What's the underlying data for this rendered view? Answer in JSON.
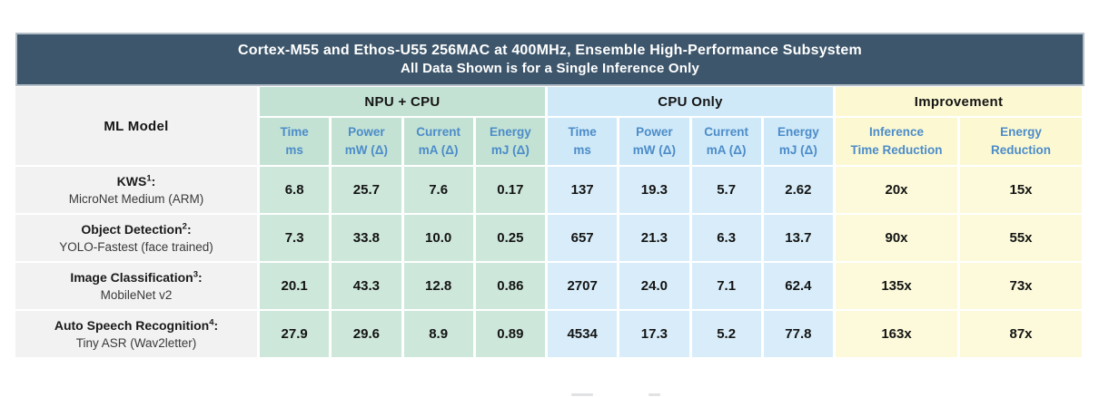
{
  "chart_data": {
    "type": "table",
    "title": "Cortex-M55 and Ethos-U55 256MAC at 400MHz, Ensemble High-Performance Subsystem",
    "subtitle": "All Data Shown is for a Single Inference Only",
    "column_groups": [
      "NPU + CPU",
      "CPU Only",
      "Improvement"
    ],
    "columns": [
      "ML Model",
      "NPU+CPU Time ms",
      "NPU+CPU Power mW (Δ)",
      "NPU+CPU Current mA (Δ)",
      "NPU+CPU Energy mJ (Δ)",
      "CPU Only Time ms",
      "CPU Only Power mW (Δ)",
      "CPU Only Current mA (Δ)",
      "CPU Only Energy mJ (Δ)",
      "Inference Time Reduction",
      "Energy Reduction"
    ],
    "rows": [
      [
        "KWS¹: MicroNet Medium (ARM)",
        6.8,
        25.7,
        7.6,
        0.17,
        137,
        19.3,
        5.7,
        2.62,
        "20x",
        "15x"
      ],
      [
        "Object Detection²: YOLO-Fastest (face trained)",
        7.3,
        33.8,
        10.0,
        0.25,
        657,
        21.3,
        6.3,
        13.7,
        "90x",
        "55x"
      ],
      [
        "Image Classification³: MobileNet v2",
        20.1,
        43.3,
        12.8,
        0.86,
        2707,
        24.0,
        7.1,
        62.4,
        "135x",
        "73x"
      ],
      [
        "Auto Speech Recognition⁴: Tiny ASR (Wav2letter)",
        27.9,
        29.6,
        8.9,
        0.89,
        4534,
        17.3,
        5.2,
        77.8,
        "163x",
        "87x"
      ]
    ]
  },
  "ui": {
    "title": {
      "line1": "Cortex-M55 and Ethos-U55 256MAC at 400MHz, Ensemble High-Performance Subsystem",
      "line2": "All Data Shown is for a Single Inference Only"
    },
    "model_header": "ML Model",
    "groups": [
      {
        "label": "NPU + CPU"
      },
      {
        "label": "CPU Only"
      },
      {
        "label": "Improvement"
      }
    ],
    "sub": {
      "npu": [
        {
          "top": "Time",
          "bottom": "ms"
        },
        {
          "top": "Power",
          "bottom": "mW (Δ)"
        },
        {
          "top": "Current",
          "bottom": "mA (Δ)"
        },
        {
          "top": "Energy",
          "bottom": "mJ (Δ)"
        }
      ],
      "cpu": [
        {
          "top": "Time",
          "bottom": "ms"
        },
        {
          "top": "Power",
          "bottom": "mW (Δ)"
        },
        {
          "top": "Current",
          "bottom": "mA (Δ)"
        },
        {
          "top": "Energy",
          "bottom": "mJ (Δ)"
        }
      ],
      "imp": [
        {
          "top": "Inference",
          "bottom": "Time Reduction"
        },
        {
          "top": "Energy",
          "bottom": "Reduction"
        }
      ]
    },
    "rows": [
      {
        "model": {
          "name": "KWS",
          "sup": "1",
          "colon": ":",
          "detail": "MicroNet Medium (ARM)"
        },
        "npu": [
          "6.8",
          "25.7",
          "7.6",
          "0.17"
        ],
        "cpu": [
          "137",
          "19.3",
          "5.7",
          "2.62"
        ],
        "imp": [
          "20x",
          "15x"
        ]
      },
      {
        "model": {
          "name": "Object Detection",
          "sup": "2",
          "colon": ":",
          "detail": "YOLO-Fastest (face trained)"
        },
        "npu": [
          "7.3",
          "33.8",
          "10.0",
          "0.25"
        ],
        "cpu": [
          "657",
          "21.3",
          "6.3",
          "13.7"
        ],
        "imp": [
          "90x",
          "55x"
        ]
      },
      {
        "model": {
          "name": "Image Classification",
          "sup": "3",
          "colon": ":",
          "detail": "MobileNet v2"
        },
        "npu": [
          "20.1",
          "43.3",
          "12.8",
          "0.86"
        ],
        "cpu": [
          "2707",
          "24.0",
          "7.1",
          "62.4"
        ],
        "imp": [
          "135x",
          "73x"
        ]
      },
      {
        "model": {
          "name": "Auto Speech Recognition",
          "sup": "4",
          "colon": ":",
          "detail": "Tiny ASR (Wav2letter)"
        },
        "npu": [
          "27.9",
          "29.6",
          "8.9",
          "0.89"
        ],
        "cpu": [
          "4534",
          "17.3",
          "5.2",
          "77.8"
        ],
        "imp": [
          "163x",
          "87x"
        ]
      }
    ]
  },
  "colors": {
    "header_bar": "#3d566b",
    "title_text": "#ffffff",
    "group_green": "#c3e2d3",
    "cell_green": "#cde7da",
    "group_blue": "#cfe9f8",
    "cell_blue": "#d8edf9",
    "group_yellow": "#fbf8d2",
    "cell_yellow": "#fcfada",
    "model_col": "#f2f2f2",
    "subheader_text": "#4c8cc9"
  }
}
